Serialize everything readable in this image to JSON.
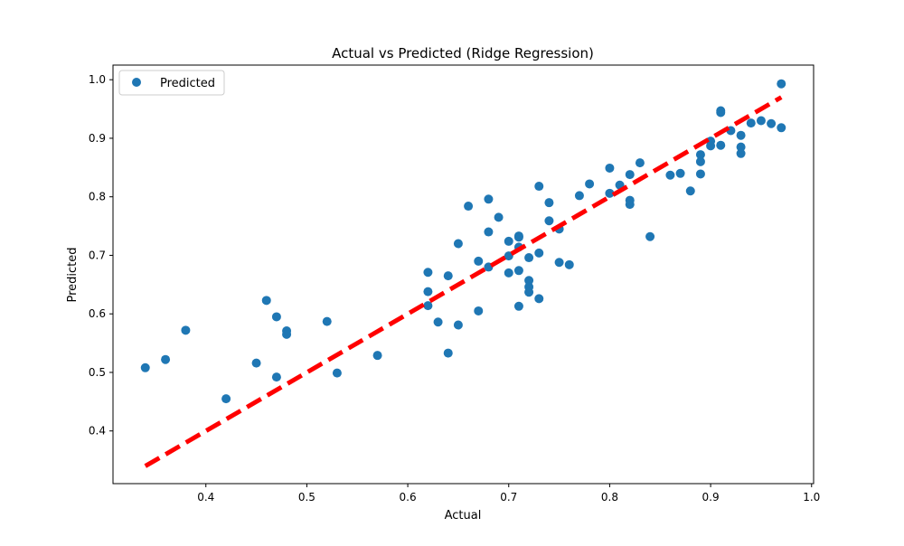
{
  "chart_data": {
    "type": "scatter",
    "title": "Actual vs Predicted (Ridge Regression)",
    "xlabel": "Actual",
    "ylabel": "Predicted",
    "xlim": [
      0.308,
      1.002
    ],
    "ylim": [
      0.31,
      1.025
    ],
    "xticks": [
      0.4,
      0.5,
      0.6,
      0.7,
      0.8,
      0.9,
      1.0
    ],
    "xtick_labels": [
      "0.4",
      "0.5",
      "0.6",
      "0.7",
      "0.8",
      "0.9",
      "1.0"
    ],
    "yticks": [
      0.4,
      0.5,
      0.6,
      0.7,
      0.8,
      0.9,
      1.0
    ],
    "ytick_labels": [
      "0.4",
      "0.5",
      "0.6",
      "0.7",
      "0.8",
      "0.9",
      "1.0"
    ],
    "grid": false,
    "legend": {
      "position": "upper-left",
      "entries": [
        {
          "label": "Predicted",
          "color": "#1f77b4",
          "marker": "circle"
        }
      ]
    },
    "series": [
      {
        "name": "Predicted",
        "color": "#1f77b4",
        "points": [
          [
            0.34,
            0.508
          ],
          [
            0.36,
            0.522
          ],
          [
            0.38,
            0.572
          ],
          [
            0.42,
            0.455
          ],
          [
            0.45,
            0.516
          ],
          [
            0.46,
            0.623
          ],
          [
            0.47,
            0.595
          ],
          [
            0.47,
            0.492
          ],
          [
            0.48,
            0.571
          ],
          [
            0.48,
            0.565
          ],
          [
            0.52,
            0.587
          ],
          [
            0.53,
            0.499
          ],
          [
            0.57,
            0.529
          ],
          [
            0.62,
            0.671
          ],
          [
            0.62,
            0.638
          ],
          [
            0.62,
            0.614
          ],
          [
            0.63,
            0.586
          ],
          [
            0.64,
            0.665
          ],
          [
            0.64,
            0.533
          ],
          [
            0.65,
            0.72
          ],
          [
            0.65,
            0.581
          ],
          [
            0.66,
            0.784
          ],
          [
            0.67,
            0.69
          ],
          [
            0.67,
            0.605
          ],
          [
            0.68,
            0.796
          ],
          [
            0.68,
            0.74
          ],
          [
            0.68,
            0.68
          ],
          [
            0.69,
            0.765
          ],
          [
            0.7,
            0.724
          ],
          [
            0.7,
            0.699
          ],
          [
            0.7,
            0.67
          ],
          [
            0.71,
            0.733
          ],
          [
            0.71,
            0.731
          ],
          [
            0.71,
            0.714
          ],
          [
            0.71,
            0.674
          ],
          [
            0.71,
            0.613
          ],
          [
            0.72,
            0.696
          ],
          [
            0.72,
            0.657
          ],
          [
            0.72,
            0.646
          ],
          [
            0.72,
            0.637
          ],
          [
            0.73,
            0.818
          ],
          [
            0.73,
            0.704
          ],
          [
            0.73,
            0.626
          ],
          [
            0.74,
            0.79
          ],
          [
            0.74,
            0.759
          ],
          [
            0.75,
            0.745
          ],
          [
            0.75,
            0.688
          ],
          [
            0.76,
            0.684
          ],
          [
            0.77,
            0.802
          ],
          [
            0.78,
            0.822
          ],
          [
            0.8,
            0.849
          ],
          [
            0.8,
            0.806
          ],
          [
            0.81,
            0.82
          ],
          [
            0.82,
            0.838
          ],
          [
            0.82,
            0.794
          ],
          [
            0.82,
            0.787
          ],
          [
            0.83,
            0.858
          ],
          [
            0.84,
            0.732
          ],
          [
            0.86,
            0.837
          ],
          [
            0.87,
            0.84
          ],
          [
            0.88,
            0.81
          ],
          [
            0.89,
            0.872
          ],
          [
            0.89,
            0.86
          ],
          [
            0.89,
            0.839
          ],
          [
            0.9,
            0.895
          ],
          [
            0.9,
            0.887
          ],
          [
            0.91,
            0.947
          ],
          [
            0.91,
            0.944
          ],
          [
            0.91,
            0.888
          ],
          [
            0.92,
            0.913
          ],
          [
            0.93,
            0.905
          ],
          [
            0.93,
            0.885
          ],
          [
            0.93,
            0.874
          ],
          [
            0.94,
            0.926
          ],
          [
            0.95,
            0.93
          ],
          [
            0.96,
            0.925
          ],
          [
            0.97,
            0.993
          ],
          [
            0.97,
            0.918
          ]
        ]
      }
    ],
    "reference_line": {
      "style": "dashed",
      "color": "#ff0000",
      "from": [
        0.34,
        0.34
      ],
      "to": [
        0.97,
        0.97
      ]
    }
  }
}
